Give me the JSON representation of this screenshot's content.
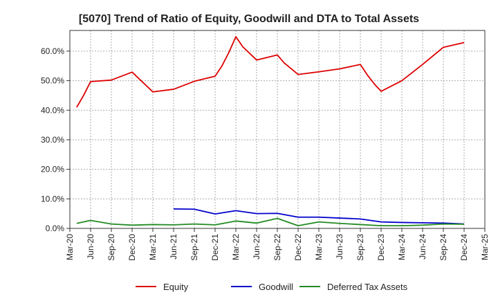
{
  "chart_data": {
    "type": "line",
    "title": "[5070]  Trend of Ratio of Equity, Goodwill and DTA to Total Assets",
    "xlabel": "",
    "ylabel": "",
    "ylim": [
      0,
      67
    ],
    "yticks": [
      0,
      10,
      20,
      30,
      40,
      50,
      60
    ],
    "ytick_labels": [
      "0.0%",
      "10.0%",
      "20.0%",
      "30.0%",
      "40.0%",
      "50.0%",
      "60.0%"
    ],
    "xtick_labels": [
      "Mar-20",
      "Jun-20",
      "Sep-20",
      "Dec-20",
      "Mar-21",
      "Jun-21",
      "Sep-21",
      "Dec-21",
      "Mar-22",
      "Jun-22",
      "Sep-22",
      "Dec-22",
      "Mar-23",
      "Jun-23",
      "Sep-23",
      "Dec-23",
      "Mar-24",
      "Jun-24",
      "Sep-24",
      "Dec-24",
      "Mar-25"
    ],
    "grid": true,
    "legend_position": "bottom",
    "series": [
      {
        "name": "Equity",
        "color": "#dd0000",
        "points": [
          [
            0.33,
            41.0
          ],
          [
            0.66,
            45.0
          ],
          [
            1.0,
            49.7
          ],
          [
            2.0,
            50.2
          ],
          [
            3.0,
            52.9
          ],
          [
            4.0,
            46.2
          ],
          [
            5.0,
            47.1
          ],
          [
            6.0,
            49.8
          ],
          [
            7.0,
            51.5
          ],
          [
            7.33,
            55.0
          ],
          [
            7.66,
            59.5
          ],
          [
            8.0,
            64.9
          ],
          [
            8.33,
            61.5
          ],
          [
            9.0,
            57.0
          ],
          [
            10.0,
            58.7
          ],
          [
            10.33,
            56.0
          ],
          [
            11.0,
            52.1
          ],
          [
            12.0,
            53.0
          ],
          [
            13.0,
            54.0
          ],
          [
            14.0,
            55.5
          ],
          [
            14.33,
            52.0
          ],
          [
            14.66,
            49.0
          ],
          [
            15.0,
            46.4
          ],
          [
            16.0,
            50.0
          ],
          [
            17.0,
            55.5
          ],
          [
            18.0,
            61.3
          ],
          [
            19.0,
            62.9
          ]
        ]
      },
      {
        "name": "Goodwill",
        "color": "#0000cc",
        "points": [
          [
            5.0,
            6.6
          ],
          [
            6.0,
            6.5
          ],
          [
            7.0,
            4.9
          ],
          [
            8.0,
            6.0
          ],
          [
            9.0,
            5.0
          ],
          [
            10.0,
            5.1
          ],
          [
            11.0,
            3.8
          ],
          [
            12.0,
            3.8
          ],
          [
            13.0,
            3.5
          ],
          [
            14.0,
            3.2
          ],
          [
            15.0,
            2.2
          ],
          [
            16.0,
            2.0
          ],
          [
            17.0,
            1.9
          ],
          [
            18.0,
            1.8
          ],
          [
            19.0,
            1.5
          ]
        ]
      },
      {
        "name": "Deferred Tax Assets",
        "color": "#228b22",
        "points": [
          [
            0.33,
            1.7
          ],
          [
            1.0,
            2.7
          ],
          [
            2.0,
            1.5
          ],
          [
            3.0,
            1.1
          ],
          [
            4.0,
            1.3
          ],
          [
            5.0,
            1.2
          ],
          [
            6.0,
            1.5
          ],
          [
            7.0,
            1.2
          ],
          [
            8.0,
            2.5
          ],
          [
            9.0,
            1.8
          ],
          [
            10.0,
            3.4
          ],
          [
            11.0,
            0.9
          ],
          [
            12.0,
            2.2
          ],
          [
            13.0,
            1.7
          ],
          [
            14.0,
            1.3
          ],
          [
            15.0,
            0.9
          ],
          [
            16.0,
            0.9
          ],
          [
            17.0,
            1.1
          ],
          [
            18.0,
            1.5
          ],
          [
            19.0,
            1.4
          ]
        ]
      }
    ]
  }
}
